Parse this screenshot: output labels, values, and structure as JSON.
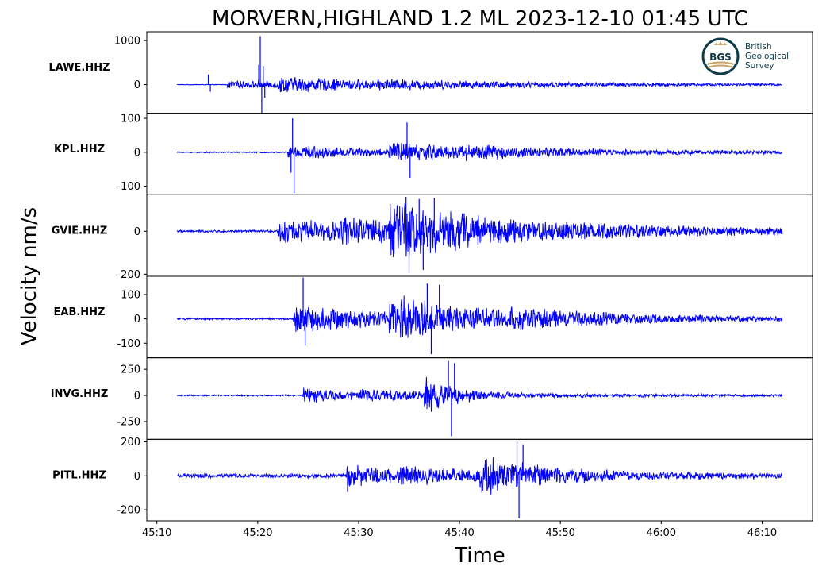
{
  "chart_data": {
    "type": "line",
    "title": "MORVERN,HIGHLAND 1.2 ML   2023-12-10 01:45 UTC",
    "xlabel": "Time",
    "ylabel": "Velocity nm/s",
    "x_ticks": [
      "45:10",
      "45:20",
      "45:30",
      "45:40",
      "45:50",
      "46:00",
      "46:10"
    ],
    "xlim_seconds": [
      609,
      675
    ],
    "data_range_seconds": [
      612,
      672
    ],
    "line_color": "#0000ff",
    "grid": false,
    "panels": [
      {
        "station": "LAWE.HHZ",
        "ylim": [
          -650,
          1200
        ],
        "yticks": [
          {
            "v": 1000,
            "label": "1000"
          },
          {
            "v": 0,
            "label": "0"
          }
        ],
        "noise": 8,
        "segments": [
          {
            "start": 617,
            "end": 672,
            "amp": 90,
            "decay": 30
          },
          {
            "start": 622,
            "end": 672,
            "amp": 130,
            "decay": 12
          },
          {
            "start": 632,
            "end": 672,
            "amp": 40,
            "decay": 20
          }
        ],
        "spikes": [
          {
            "t": 615.1,
            "v": 230
          },
          {
            "t": 615.3,
            "v": -160
          },
          {
            "t": 620.1,
            "v": 450
          },
          {
            "t": 620.25,
            "v": 1100
          },
          {
            "t": 620.4,
            "v": -640
          },
          {
            "t": 620.55,
            "v": 420
          },
          {
            "t": 620.7,
            "v": -300
          }
        ]
      },
      {
        "station": "KPL.HHZ",
        "ylim": [
          -125,
          115
        ],
        "yticks": [
          {
            "v": 100,
            "label": "100"
          },
          {
            "v": 0,
            "label": "0"
          },
          {
            "v": -100,
            "label": "-100"
          }
        ],
        "noise": 2,
        "segments": [
          {
            "start": 623,
            "end": 672,
            "amp": 22,
            "decay": 12
          },
          {
            "start": 633,
            "end": 672,
            "amp": 28,
            "decay": 10
          },
          {
            "start": 640,
            "end": 672,
            "amp": 8,
            "decay": 25
          }
        ],
        "spikes": [
          {
            "t": 623.3,
            "v": -60
          },
          {
            "t": 623.45,
            "v": 100
          },
          {
            "t": 623.6,
            "v": -120
          },
          {
            "t": 634.8,
            "v": 88
          },
          {
            "t": 635.1,
            "v": -75
          }
        ]
      },
      {
        "station": "GVIE.HHZ",
        "ylim": [
          -210,
          170
        ],
        "yticks": [
          {
            "v": 0,
            "label": "0"
          },
          {
            "v": -200,
            "label": "-200"
          }
        ],
        "noise": 6,
        "segments": [
          {
            "start": 622,
            "end": 672,
            "amp": 55,
            "decay": 30
          },
          {
            "start": 628,
            "end": 672,
            "amp": 25,
            "decay": 20
          },
          {
            "start": 633,
            "end": 672,
            "amp": 120,
            "decay": 8
          }
        ],
        "spikes": [
          {
            "t": 634.7,
            "v": 160
          },
          {
            "t": 635.0,
            "v": -195
          },
          {
            "t": 636.0,
            "v": 150
          },
          {
            "t": 636.4,
            "v": -180
          },
          {
            "t": 637.5,
            "v": 155
          }
        ]
      },
      {
        "station": "EAB.HHZ",
        "ylim": [
          -160,
          175
        ],
        "yticks": [
          {
            "v": 100,
            "label": "100"
          },
          {
            "v": 0,
            "label": "0"
          },
          {
            "v": -100,
            "label": "-100"
          }
        ],
        "noise": 4,
        "segments": [
          {
            "start": 623.5,
            "end": 672,
            "amp": 60,
            "decay": 14
          },
          {
            "start": 633,
            "end": 672,
            "amp": 80,
            "decay": 10
          },
          {
            "start": 645,
            "end": 672,
            "amp": 15,
            "decay": 20
          }
        ],
        "spikes": [
          {
            "t": 624.5,
            "v": 170
          },
          {
            "t": 624.7,
            "v": -110
          },
          {
            "t": 636.8,
            "v": 145
          },
          {
            "t": 637.2,
            "v": -145
          },
          {
            "t": 638.0,
            "v": 140
          }
        ]
      },
      {
        "station": "INVG.HHZ",
        "ylim": [
          -420,
          360
        ],
        "yticks": [
          {
            "v": 250,
            "label": "250"
          },
          {
            "v": 0,
            "label": "0"
          },
          {
            "v": -250,
            "label": "-250"
          }
        ],
        "noise": 8,
        "segments": [
          {
            "start": 624.5,
            "end": 672,
            "amp": 80,
            "decay": 6
          },
          {
            "start": 630,
            "end": 672,
            "amp": 35,
            "decay": 20
          },
          {
            "start": 636.5,
            "end": 672,
            "amp": 210,
            "decay": 2.5
          }
        ],
        "spikes": [
          {
            "t": 638.9,
            "v": 330
          },
          {
            "t": 639.2,
            "v": -390
          },
          {
            "t": 639.5,
            "v": 310
          }
        ]
      },
      {
        "station": "PITL.HHZ",
        "ylim": [
          -265,
          215
        ],
        "yticks": [
          {
            "v": 200,
            "label": "200"
          },
          {
            "v": 0,
            "label": "0"
          },
          {
            "v": -200,
            "label": "-200"
          }
        ],
        "noise": 14,
        "segments": [
          {
            "start": 628.8,
            "end": 672,
            "amp": 75,
            "decay": 6
          },
          {
            "start": 634,
            "end": 672,
            "amp": 25,
            "decay": 20
          },
          {
            "start": 642,
            "end": 672,
            "amp": 110,
            "decay": 6
          }
        ],
        "spikes": [
          {
            "t": 628.9,
            "v": -95
          },
          {
            "t": 645.7,
            "v": 200
          },
          {
            "t": 645.9,
            "v": -250
          },
          {
            "t": 646.3,
            "v": 185
          }
        ]
      }
    ]
  },
  "logo": {
    "abbr": "BGS",
    "lines": [
      "British",
      "Geological",
      "Survey"
    ],
    "colors": {
      "ring": "#0f3b48",
      "accent": "#c8a46a"
    }
  }
}
